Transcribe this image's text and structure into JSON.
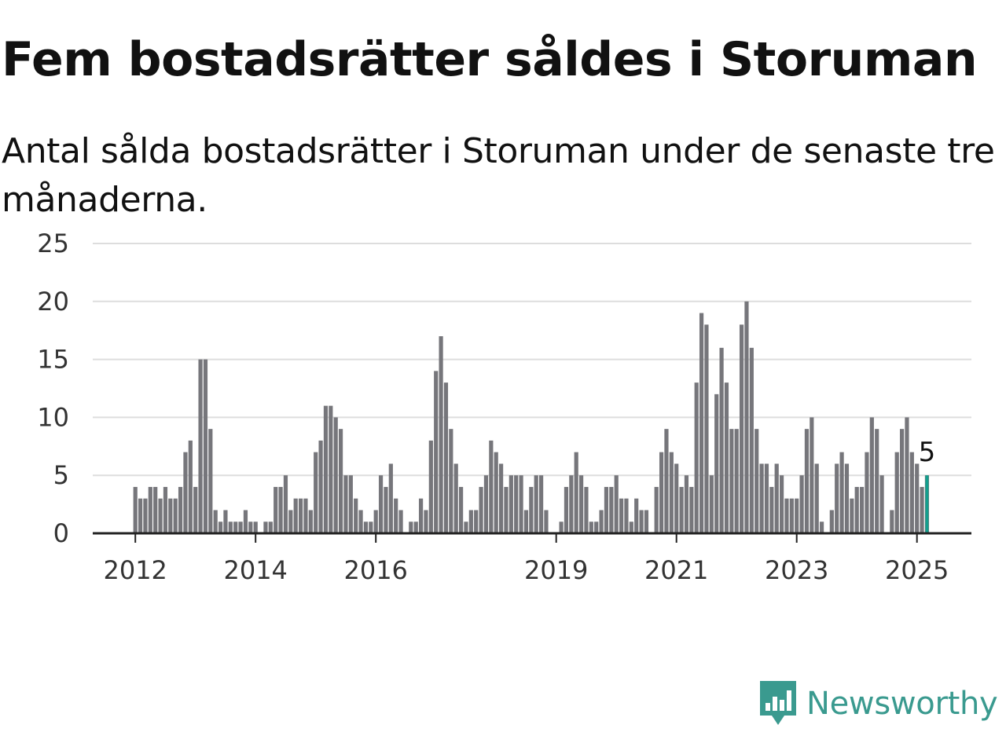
{
  "header": {
    "title": "Fem bostadsrätter såldes i Storuman",
    "subtitle": "Antal sålda bostadsrätter i Storuman under de senaste tre månaderna."
  },
  "brand": {
    "name": "Newsworthy",
    "color": "#3a9a8f",
    "icon": "newsworthy-logo-icon"
  },
  "colors": {
    "bar": "#76767b",
    "highlight": "#139e8d",
    "grid": "#dddddd",
    "axis": "#222222"
  },
  "chart_data": {
    "type": "bar",
    "title": "Fem bostadsrätter såldes i Storuman",
    "subtitle": "Antal sålda bostadsrätter i Storuman under de senaste tre månaderna.",
    "xlabel": "",
    "ylabel": "",
    "ylim": [
      0,
      25
    ],
    "yticks": [
      0,
      5,
      10,
      15,
      20,
      25
    ],
    "xticks": [
      "2012",
      "2014",
      "2016",
      "2019",
      "2021",
      "2023",
      "2025"
    ],
    "grid": true,
    "legend": "none",
    "start": "2012-01",
    "frequency": "monthly",
    "values": [
      4,
      3,
      3,
      4,
      4,
      3,
      4,
      3,
      3,
      4,
      7,
      8,
      4,
      15,
      15,
      9,
      2,
      1,
      2,
      1,
      1,
      1,
      2,
      1,
      1,
      0,
      1,
      1,
      4,
      4,
      5,
      2,
      3,
      3,
      3,
      2,
      7,
      8,
      11,
      11,
      10,
      9,
      5,
      5,
      3,
      2,
      1,
      1,
      2,
      5,
      4,
      6,
      3,
      2,
      0,
      1,
      1,
      3,
      2,
      8,
      14,
      17,
      13,
      9,
      6,
      4,
      1,
      2,
      2,
      4,
      5,
      8,
      7,
      6,
      4,
      5,
      5,
      5,
      2,
      4,
      5,
      5,
      2,
      0,
      0,
      1,
      4,
      5,
      7,
      5,
      4,
      1,
      1,
      2,
      4,
      4,
      5,
      3,
      3,
      1,
      3,
      2,
      2,
      0,
      4,
      7,
      9,
      7,
      6,
      4,
      5,
      4,
      13,
      19,
      18,
      5,
      12,
      16,
      13,
      9,
      9,
      18,
      20,
      16,
      9,
      6,
      6,
      4,
      6,
      5,
      3,
      3,
      3,
      5,
      9,
      10,
      6,
      1,
      0,
      2,
      6,
      7,
      6,
      3,
      4,
      4,
      7,
      10,
      9,
      5,
      0,
      2,
      7,
      9,
      10,
      7,
      6,
      4,
      5
    ],
    "highlight": {
      "label": "5",
      "value": 5,
      "date": "2025-03"
    }
  }
}
